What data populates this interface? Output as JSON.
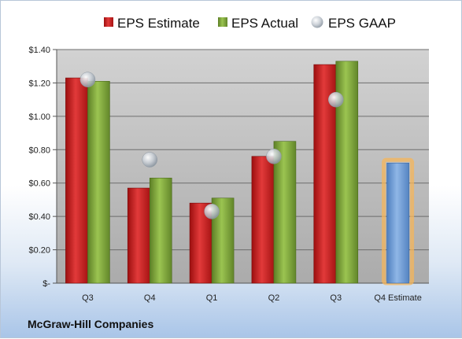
{
  "chart_data": {
    "type": "bar",
    "categories": [
      "Q3",
      "Q4",
      "Q1",
      "Q2",
      "Q3",
      "Q4 Estimate"
    ],
    "series": [
      {
        "name": "EPS Estimate",
        "type": "bar",
        "values": [
          1.23,
          0.57,
          0.48,
          0.76,
          1.31,
          null
        ],
        "color": "#cc1f1f"
      },
      {
        "name": "EPS Actual",
        "type": "bar",
        "values": [
          1.21,
          0.63,
          0.51,
          0.85,
          1.33,
          null
        ],
        "color": "#7fa33a"
      },
      {
        "name": "EPS GAAP",
        "type": "scatter",
        "values": [
          1.22,
          0.74,
          0.43,
          0.76,
          1.1,
          null
        ],
        "color": "#b8c2cc"
      },
      {
        "name": "",
        "type": "bar",
        "values": [
          null,
          null,
          null,
          null,
          null,
          0.72
        ],
        "color": "#6f9fd8",
        "highlight": "#f5b55a"
      }
    ],
    "y_tick_labels": [
      "$-",
      "$0.20",
      "$0.40",
      "$0.60",
      "$0.80",
      "$1.00",
      "$1.20",
      "$1.40"
    ],
    "ylim": [
      0,
      1.4
    ],
    "y_step": 0.2,
    "grid": true,
    "legend_position": "top",
    "company": "McGraw-Hill Companies"
  }
}
